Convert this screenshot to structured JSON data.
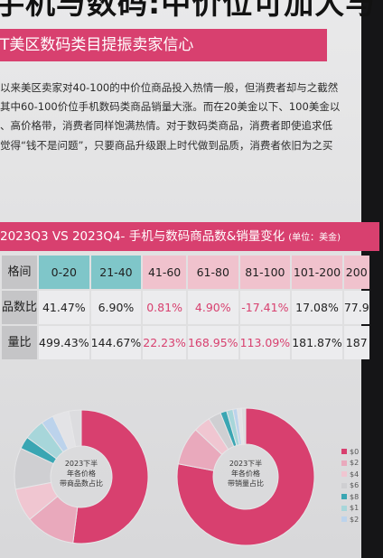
{
  "headline": "手机与数码:中价位可加大与",
  "section_banner": "T美区数码类目提振卖家信心",
  "paragraphs": [
    "以来美区卖家对40-100的中价位商品投入热情一般，但消费者却与之截然",
    "其中60-100价位手机数码类商品销量大涨。而在20美金以下、100美金以",
    "、高价格带，消费者同样饱满热情。对于数码类商品，消费者即使追求低",
    "觉得“钱不是问题”，只要商品升级跟上时代做到品质，消费者依旧为之买"
  ],
  "chart_title": "2023Q3 VS 2023Q4- 手机与数码商品数&销量变化",
  "chart_unit": "(单位：美金)",
  "chart_data": [
    {
      "type": "table",
      "row_headers": [
        "格间",
        "品数比",
        "量比"
      ],
      "categories": [
        "0-20",
        "21-40",
        "41-60",
        "61-80",
        "81-100",
        "101-200",
        "200"
      ],
      "rows": [
        {
          "values": [
            "41.47%",
            "6.90%",
            "0.81%",
            "4.90%",
            "-17.41%",
            "17.08%",
            "77.9"
          ]
        },
        {
          "values": [
            "499.43%",
            "144.67%",
            "22.23%",
            "168.95%",
            "113.09%",
            "181.87%",
            "187"
          ]
        }
      ]
    },
    {
      "type": "pie",
      "title": "2023下半年各价格带商品数占比",
      "values": [
        52,
        12,
        8,
        10,
        3,
        5,
        3,
        4,
        3
      ],
      "colors": [
        "#d8406f",
        "#e9a9bc",
        "#f0c6d1",
        "#cfcfd2",
        "#3aa6b3",
        "#a7d6da",
        "#bcd3ec",
        "#e3e3e6",
        "#dcdcdf"
      ]
    },
    {
      "type": "pie",
      "title": "2023下半年各价格带销量占比",
      "values": [
        78,
        9,
        4,
        3,
        1.5,
        1.5,
        1,
        1,
        1
      ],
      "colors": [
        "#d8406f",
        "#e9a9bc",
        "#f0c6d1",
        "#cfcfd2",
        "#3aa6b3",
        "#a7d6da",
        "#bcd3ec",
        "#e3e3e6",
        "#dcdcdf"
      ]
    }
  ],
  "legend": {
    "items": [
      {
        "label": "$0",
        "color": "#d8406f"
      },
      {
        "label": "$2",
        "color": "#e9a9bc"
      },
      {
        "label": "$4",
        "color": "#f0c6d1"
      },
      {
        "label": "$6",
        "color": "#cfcfd2"
      },
      {
        "label": "$8",
        "color": "#3aa6b3"
      },
      {
        "label": "$1",
        "color": "#a7d6da"
      },
      {
        "label": "$2",
        "color": "#bcd3ec"
      }
    ]
  }
}
